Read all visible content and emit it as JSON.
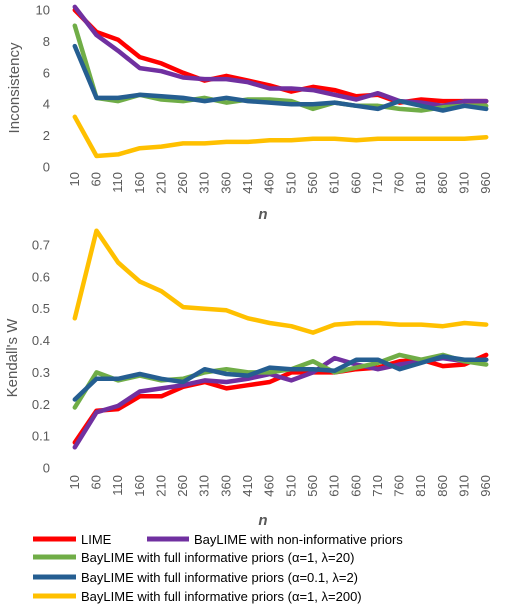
{
  "chart_data": [
    {
      "type": "line",
      "title": "",
      "xlabel": "n",
      "ylabel": "Inconsistency",
      "ylim": [
        0,
        10
      ],
      "yticks": [
        "0",
        "2",
        "4",
        "6",
        "8",
        "10"
      ],
      "grid": false,
      "categories": [
        "10",
        "60",
        "110",
        "160",
        "210",
        "260",
        "310",
        "360",
        "410",
        "460",
        "510",
        "560",
        "610",
        "660",
        "710",
        "760",
        "810",
        "860",
        "910",
        "960"
      ],
      "series": [
        {
          "name": "LIME",
          "color": "#ff0000",
          "values": [
            10.0,
            8.6,
            8.1,
            7.0,
            6.6,
            6.0,
            5.5,
            5.8,
            5.5,
            5.2,
            4.8,
            5.1,
            4.9,
            4.5,
            4.6,
            4.1,
            4.3,
            4.2,
            4.2,
            4.2
          ]
        },
        {
          "name": "BayLIME with non-informative priors",
          "color": "#7030a0",
          "values": [
            10.2,
            8.4,
            7.4,
            6.3,
            6.1,
            5.7,
            5.6,
            5.6,
            5.4,
            5.0,
            5.0,
            4.9,
            4.6,
            4.3,
            4.7,
            4.2,
            4.1,
            3.9,
            4.2,
            4.2
          ]
        },
        {
          "name": "BayLIME with full informative priors (α=1, λ=20)",
          "color": "#70ad47",
          "values": [
            9.0,
            4.4,
            4.2,
            4.6,
            4.3,
            4.2,
            4.4,
            4.1,
            4.3,
            4.3,
            4.2,
            3.7,
            4.1,
            3.9,
            3.9,
            3.7,
            3.6,
            3.8,
            3.9,
            3.9
          ]
        },
        {
          "name": "BayLIME with full informative priors (α=0.1, λ=2)",
          "color": "#255e91",
          "values": [
            7.7,
            4.4,
            4.4,
            4.6,
            4.5,
            4.4,
            4.2,
            4.4,
            4.2,
            4.1,
            4.0,
            4.0,
            4.1,
            3.9,
            3.7,
            4.2,
            3.9,
            3.6,
            3.9,
            3.7
          ]
        },
        {
          "name": "BayLIME with full informative priors (α=1, λ=200)",
          "color": "#ffc000",
          "values": [
            3.2,
            0.7,
            0.8,
            1.2,
            1.3,
            1.5,
            1.5,
            1.6,
            1.6,
            1.7,
            1.7,
            1.8,
            1.8,
            1.7,
            1.8,
            1.8,
            1.8,
            1.8,
            1.8,
            1.9
          ]
        }
      ]
    },
    {
      "type": "line",
      "title": "",
      "xlabel": "n",
      "ylabel": "Kendall's W",
      "ylim": [
        0,
        0.7
      ],
      "yticks": [
        "0",
        "0.1",
        "0.2",
        "0.3",
        "0.4",
        "0.5",
        "0.6",
        "0.7"
      ],
      "grid": false,
      "categories": [
        "10",
        "60",
        "110",
        "160",
        "210",
        "260",
        "310",
        "360",
        "410",
        "460",
        "510",
        "560",
        "610",
        "660",
        "710",
        "760",
        "810",
        "860",
        "910",
        "960"
      ],
      "series": [
        {
          "name": "LIME",
          "color": "#ff0000",
          "values": [
            0.08,
            0.18,
            0.185,
            0.225,
            0.225,
            0.255,
            0.27,
            0.25,
            0.26,
            0.27,
            0.3,
            0.3,
            0.3,
            0.31,
            0.315,
            0.335,
            0.34,
            0.32,
            0.325,
            0.355
          ]
        },
        {
          "name": "BayLIME with non-informative priors",
          "color": "#7030a0",
          "values": [
            0.065,
            0.175,
            0.195,
            0.24,
            0.25,
            0.26,
            0.275,
            0.27,
            0.28,
            0.295,
            0.275,
            0.3,
            0.345,
            0.325,
            0.31,
            0.325,
            0.335,
            0.345,
            0.335,
            0.34
          ]
        },
        {
          "name": "BayLIME with full informative priors (α=1, λ=20)",
          "color": "#70ad47",
          "values": [
            0.19,
            0.3,
            0.275,
            0.29,
            0.275,
            0.28,
            0.3,
            0.31,
            0.3,
            0.3,
            0.31,
            0.335,
            0.3,
            0.315,
            0.33,
            0.355,
            0.34,
            0.355,
            0.335,
            0.325
          ]
        },
        {
          "name": "BayLIME with full informative priors (α=0.1, λ=2)",
          "color": "#255e91",
          "values": [
            0.215,
            0.28,
            0.28,
            0.295,
            0.28,
            0.27,
            0.31,
            0.295,
            0.29,
            0.315,
            0.31,
            0.31,
            0.305,
            0.34,
            0.34,
            0.31,
            0.33,
            0.35,
            0.34,
            0.34
          ]
        },
        {
          "name": "BayLIME with full informative priors (α=1, λ=200)",
          "color": "#ffc000",
          "values": [
            0.47,
            0.745,
            0.645,
            0.585,
            0.555,
            0.505,
            0.5,
            0.495,
            0.47,
            0.455,
            0.445,
            0.425,
            0.45,
            0.455,
            0.455,
            0.45,
            0.45,
            0.445,
            0.455,
            0.45
          ]
        }
      ]
    }
  ],
  "legend": {
    "placement": "bottom",
    "items": [
      {
        "label": "LIME",
        "color": "#ff0000"
      },
      {
        "label": "BayLIME with non-informative priors",
        "color": "#7030a0"
      },
      {
        "label": "BayLIME with full informative priors (α=1, λ=20)",
        "color": "#70ad47"
      },
      {
        "label": "BayLIME with full informative priors (α=0.1, λ=2)",
        "color": "#255e91"
      },
      {
        "label": "BayLIME with full informative priors (α=1, λ=200)",
        "color": "#ffc000"
      }
    ]
  }
}
